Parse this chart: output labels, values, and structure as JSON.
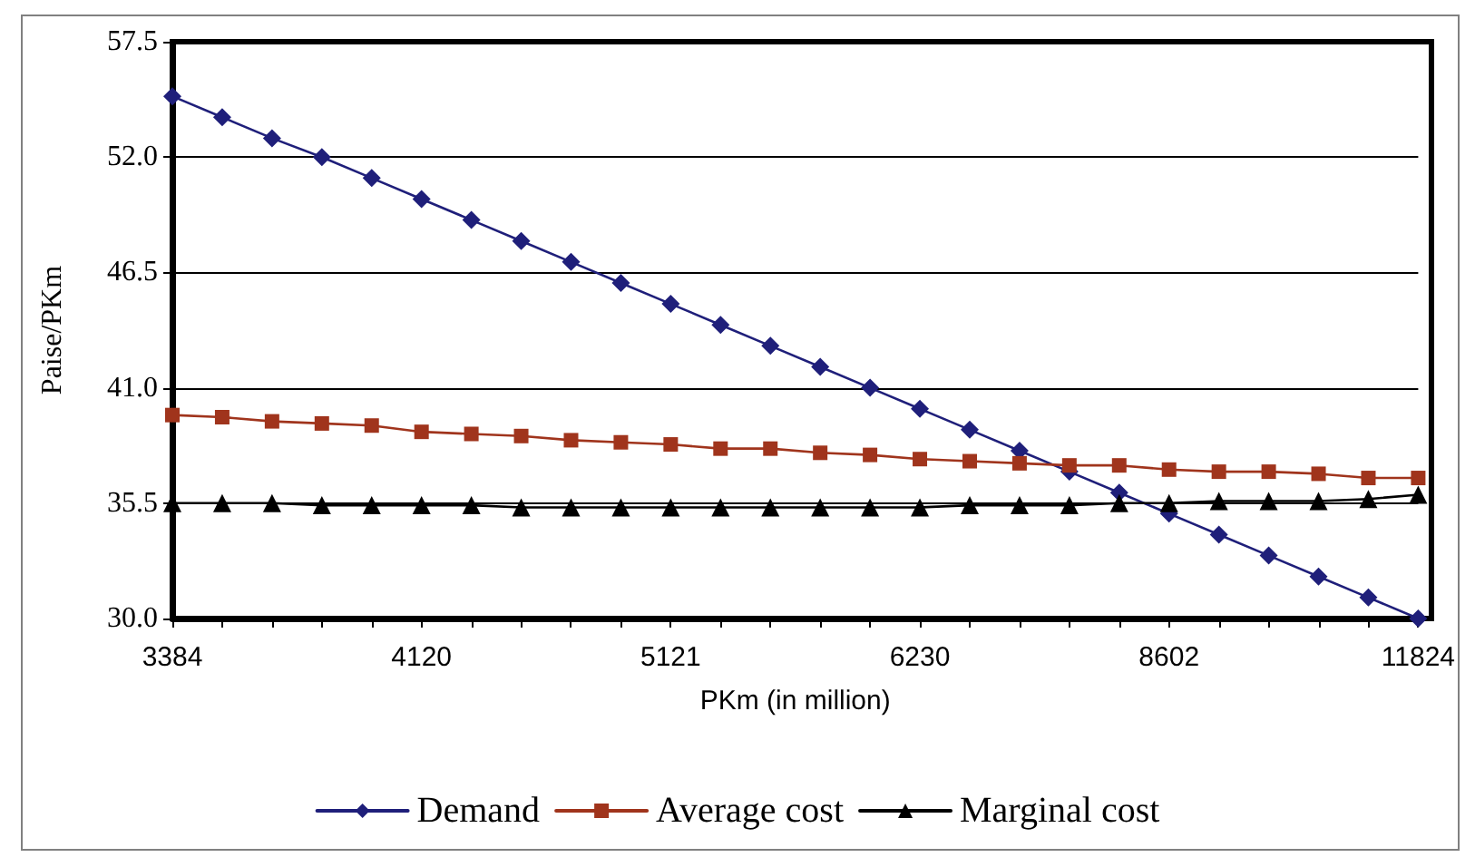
{
  "chart_data": {
    "type": "line",
    "xlabel": "PKm (in million)",
    "ylabel": "Paise/PKm",
    "categories": [
      "3384",
      null,
      null,
      null,
      null,
      "4120",
      null,
      null,
      null,
      null,
      "5121",
      null,
      null,
      null,
      null,
      "6230",
      null,
      null,
      null,
      null,
      "8602",
      null,
      null,
      null,
      null,
      "11824"
    ],
    "series": [
      {
        "name": "Demand",
        "color": "#1f1f7a",
        "marker": "diamond",
        "values": [
          54.9,
          53.9,
          52.9,
          52.0,
          51.0,
          50.0,
          49.0,
          48.0,
          47.0,
          46.0,
          45.0,
          44.0,
          43.0,
          42.0,
          41.0,
          40.0,
          39.0,
          38.0,
          37.0,
          36.0,
          35.0,
          34.0,
          33.0,
          32.0,
          31.0,
          30.0
        ]
      },
      {
        "name": "Average cost",
        "color": "#a0341c",
        "marker": "square",
        "values": [
          39.7,
          39.6,
          39.4,
          39.3,
          39.2,
          38.9,
          38.8,
          38.7,
          38.5,
          38.4,
          38.3,
          38.1,
          38.1,
          37.9,
          37.8,
          37.6,
          37.5,
          37.4,
          37.3,
          37.3,
          37.1,
          37.0,
          37.0,
          36.9,
          36.7,
          36.7
        ]
      },
      {
        "name": "Marginal cost",
        "color": "#000000",
        "marker": "triangle",
        "values": [
          35.5,
          35.5,
          35.5,
          35.4,
          35.4,
          35.4,
          35.4,
          35.3,
          35.3,
          35.3,
          35.3,
          35.3,
          35.3,
          35.3,
          35.3,
          35.3,
          35.4,
          35.4,
          35.4,
          35.5,
          35.5,
          35.6,
          35.6,
          35.6,
          35.7,
          35.9
        ]
      }
    ],
    "ylim": [
      30,
      57.5
    ],
    "yticks": [
      {
        "value": 30,
        "label": "30.0"
      },
      {
        "value": 35.5,
        "label": "35.5"
      },
      {
        "value": 41,
        "label": "41.0"
      },
      {
        "value": 46.5,
        "label": "46.5"
      },
      {
        "value": 52,
        "label": "52.0"
      },
      {
        "value": 57.5,
        "label": "57.5"
      }
    ],
    "grid": "y",
    "legend": "bottom",
    "line_style": "solid"
  }
}
